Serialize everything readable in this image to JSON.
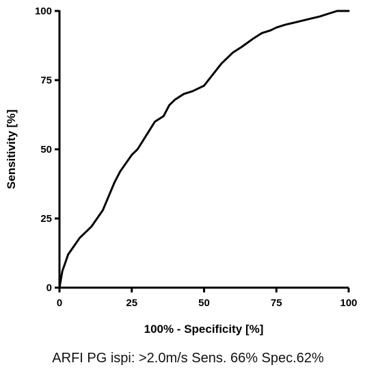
{
  "chart_data": {
    "type": "line",
    "xlabel": "100% - Specificity [%]",
    "ylabel": "Sensitivity [%]",
    "xlim": [
      0,
      100
    ],
    "ylim": [
      0,
      100
    ],
    "xticks": [
      0,
      25,
      50,
      75,
      100
    ],
    "yticks": [
      0,
      25,
      50,
      75,
      100
    ],
    "grid": false,
    "series": [
      {
        "color": "#000000",
        "x": [
          0,
          0.5,
          1,
          2,
          3,
          5,
          7,
          9,
          11,
          13,
          15,
          17,
          19,
          21,
          23,
          25,
          27,
          30,
          33,
          36,
          38,
          40,
          43,
          46,
          50,
          53,
          56,
          60,
          63,
          67,
          70,
          73,
          75,
          78,
          82,
          86,
          90,
          93,
          96,
          100
        ],
        "y": [
          0,
          3,
          6,
          9,
          12,
          15,
          18,
          20,
          22,
          25,
          28,
          33,
          38,
          42,
          45,
          48,
          50,
          55,
          60,
          62,
          66,
          68,
          70,
          71,
          73,
          77,
          81,
          85,
          87,
          90,
          92,
          93,
          94,
          95,
          96,
          97,
          98,
          99,
          100,
          100
        ]
      }
    ]
  },
  "caption": "ARFI PG ispi: >2.0m/s Sens. 66% Spec.62%"
}
